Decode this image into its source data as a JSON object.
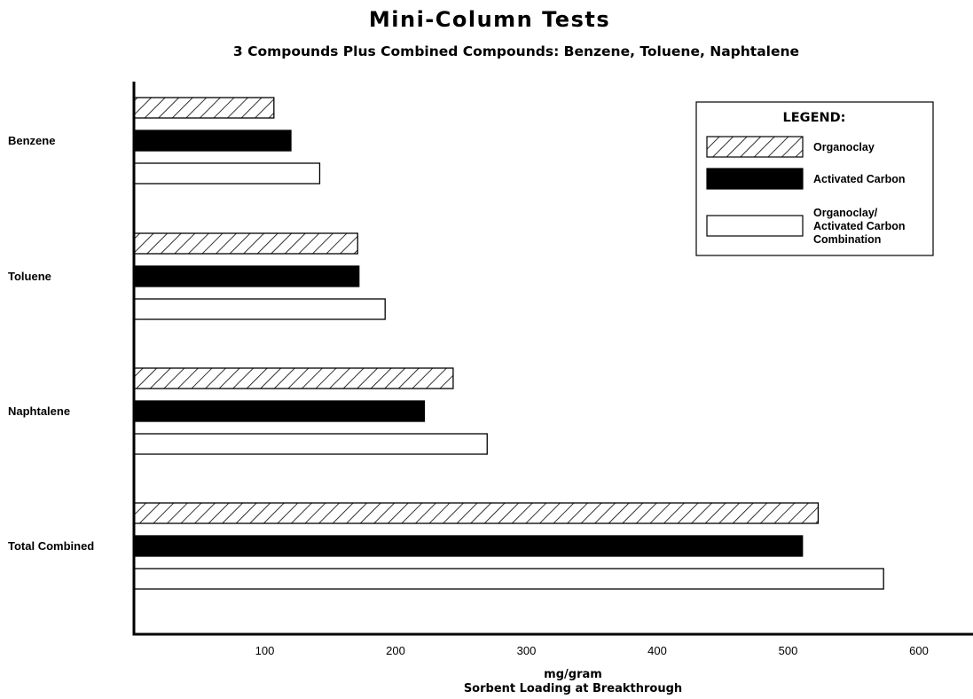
{
  "chart_data": {
    "type": "bar",
    "orientation": "horizontal",
    "title": "Mini-Column Tests",
    "subtitle": "3 Compounds Plus Combined Compounds: Benzene, Toluene, Naphtalene",
    "xlabel": "mg/gram",
    "xlabel2": "Sorbent Loading at Breakthrough",
    "ylabel": "",
    "xlim": [
      0,
      640
    ],
    "xticks": [
      100,
      200,
      300,
      400,
      500,
      600
    ],
    "xtick_labels": [
      "100",
      "200",
      "300",
      "400",
      "500",
      "600"
    ],
    "grid": false,
    "categories": [
      "Benzene",
      "Toluene",
      "Naphtalene",
      "Total Combined"
    ],
    "series": [
      {
        "name": "Organoclay",
        "fill": "hatched",
        "values": [
          107,
          171,
          244,
          523
        ]
      },
      {
        "name": "Activated Carbon",
        "fill": "solid-black",
        "values": [
          120,
          172,
          222,
          511
        ]
      },
      {
        "name": "Organoclay/ Activated Carbon Combination",
        "fill": "white",
        "values": [
          142,
          192,
          270,
          573
        ]
      }
    ],
    "legend": {
      "title": "LEGEND:",
      "position": "top-right",
      "entries": [
        {
          "lines": [
            "Organoclay"
          ]
        },
        {
          "lines": [
            "Activated Carbon"
          ]
        },
        {
          "lines": [
            "Organoclay/",
            "Activated Carbon",
            "Combination"
          ]
        }
      ]
    }
  }
}
